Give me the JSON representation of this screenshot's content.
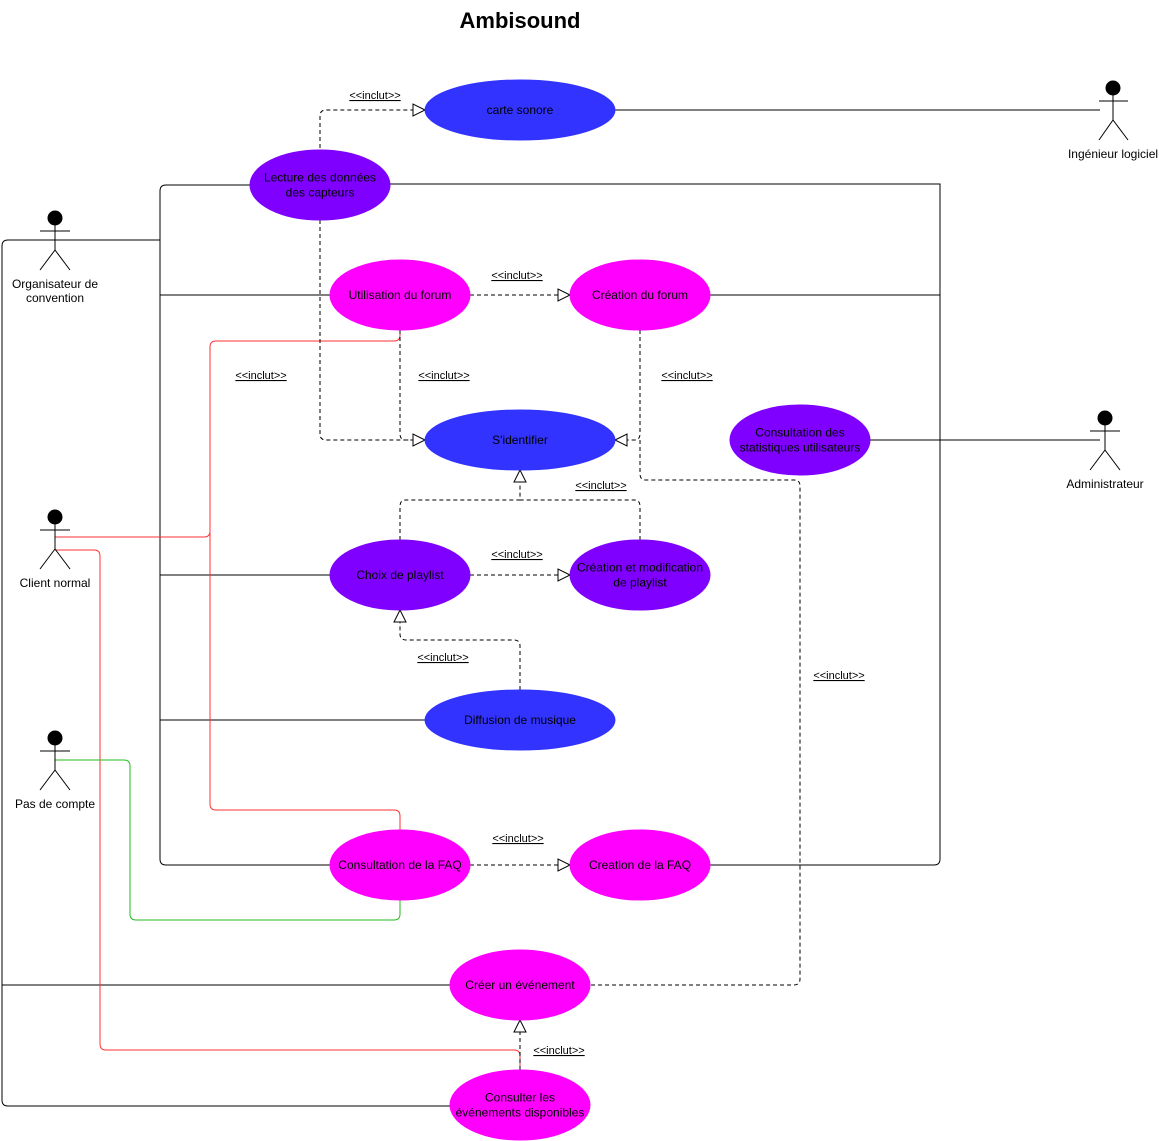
{
  "title": "Ambisound",
  "colors": {
    "blue": "#3333ff",
    "violet": "#7f00ff",
    "magenta": "#ff00ff",
    "red_line": "#ff3333",
    "green_line": "#22bb22"
  },
  "actors": {
    "ingenieur": "Ingénieur logiciel",
    "organisateur_l1": "Organisateur de",
    "organisateur_l2": "convention",
    "administrateur": "Administrateur",
    "client": "Client normal",
    "pas_de_compte": "Pas de compte"
  },
  "use_cases": {
    "carte_sonore": [
      "carte sonore"
    ],
    "lecture": [
      "Lecture des données",
      "des capteurs"
    ],
    "utilisation_forum": [
      "Utilisation du forum"
    ],
    "creation_forum": [
      "Création du forum"
    ],
    "identifier": [
      "S'identifier"
    ],
    "stats": [
      "Consultation des",
      "statistiques utilisateurs"
    ],
    "choix_playlist": [
      "Choix de playlist"
    ],
    "creation_playlist": [
      "Création et modification",
      "de playlist"
    ],
    "diffusion": [
      "Diffusion de musique"
    ],
    "consultation_faq": [
      "Consultation de la FAQ"
    ],
    "creation_faq": [
      "Creation de la FAQ"
    ],
    "creer_evenement": [
      "Créer un événement"
    ],
    "consulter_evenements": [
      "Consulter les",
      "événements disponibles"
    ]
  },
  "include_label": "<<inclut>>"
}
